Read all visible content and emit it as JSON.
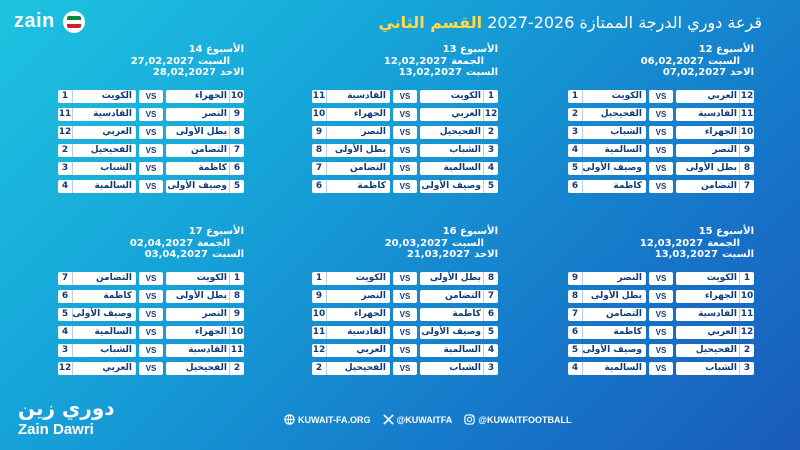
{
  "brand": {
    "top_logo": "zain",
    "bottom_ar": "دوري زين",
    "bottom_en": "Zain Dawri"
  },
  "header": {
    "accent": "القسم الثاني",
    "title": "قرعة دوري الدرجة الممتازة 2026-2027"
  },
  "colors": {
    "accent": "#ffd84d",
    "navy": "#0f3d7a",
    "card": "#ffffff"
  },
  "weeks": [
    {
      "title": "الأسبوع 12",
      "dates": [
        {
          "day": "السبت",
          "date": "06,02,2027"
        },
        {
          "day": "الاحد",
          "date": "07,02,2027"
        }
      ],
      "matches": [
        {
          "home_num": "12",
          "home": "العربي",
          "away_num": "1",
          "away": "الكويت"
        },
        {
          "home_num": "11",
          "home": "القادسية",
          "away_num": "2",
          "away": "الفحيحيل"
        },
        {
          "home_num": "10",
          "home": "الجهراء",
          "away_num": "3",
          "away": "الشباب"
        },
        {
          "home_num": "9",
          "home": "النصر",
          "away_num": "4",
          "away": "السالمية"
        },
        {
          "home_num": "8",
          "home": "بطل الأولى",
          "away_num": "5",
          "away": "وصيف الأولى"
        },
        {
          "home_num": "7",
          "home": "التضامن",
          "away_num": "6",
          "away": "كاظمة"
        }
      ]
    },
    {
      "title": "الأسبوع 13",
      "dates": [
        {
          "day": "الجمعة",
          "date": "12,02,2027"
        },
        {
          "day": "السبت",
          "date": "13,02,2027"
        }
      ],
      "matches": [
        {
          "home_num": "1",
          "home": "الكويت",
          "away_num": "11",
          "away": "القادسية"
        },
        {
          "home_num": "12",
          "home": "العربي",
          "away_num": "10",
          "away": "الجهراء"
        },
        {
          "home_num": "2",
          "home": "الفحيحيل",
          "away_num": "9",
          "away": "النصر"
        },
        {
          "home_num": "3",
          "home": "الشباب",
          "away_num": "8",
          "away": "بطل الأولى"
        },
        {
          "home_num": "4",
          "home": "السالمية",
          "away_num": "7",
          "away": "التضامن"
        },
        {
          "home_num": "5",
          "home": "وصيف الأولى",
          "away_num": "6",
          "away": "كاظمة"
        }
      ]
    },
    {
      "title": "الأسبوع 14",
      "dates": [
        {
          "day": "السبت",
          "date": "27,02,2027"
        },
        {
          "day": "الاحد",
          "date": "28,02,2027"
        }
      ],
      "matches": [
        {
          "home_num": "10",
          "home": "الجهراء",
          "away_num": "1",
          "away": "الكويت"
        },
        {
          "home_num": "9",
          "home": "النصر",
          "away_num": "11",
          "away": "القادسية"
        },
        {
          "home_num": "8",
          "home": "بطل الأولى",
          "away_num": "12",
          "away": "العربي"
        },
        {
          "home_num": "7",
          "home": "التضامن",
          "away_num": "2",
          "away": "الفحيحيل"
        },
        {
          "home_num": "6",
          "home": "كاظمة",
          "away_num": "3",
          "away": "الشباب"
        },
        {
          "home_num": "5",
          "home": "وصيف الأولى",
          "away_num": "4",
          "away": "السالمية"
        }
      ]
    },
    {
      "title": "الأسبوع 15",
      "dates": [
        {
          "day": "الجمعة",
          "date": "12,03,2027"
        },
        {
          "day": "السبت",
          "date": "13,03,2027"
        }
      ],
      "matches": [
        {
          "home_num": "1",
          "home": "الكويت",
          "away_num": "9",
          "away": "النصر"
        },
        {
          "home_num": "10",
          "home": "الجهراء",
          "away_num": "8",
          "away": "بطل الأولى"
        },
        {
          "home_num": "11",
          "home": "القادسية",
          "away_num": "7",
          "away": "التضامن"
        },
        {
          "home_num": "12",
          "home": "العربي",
          "away_num": "6",
          "away": "كاظمة"
        },
        {
          "home_num": "2",
          "home": "الفحيحيل",
          "away_num": "5",
          "away": "وصيف الأولى"
        },
        {
          "home_num": "3",
          "home": "الشباب",
          "away_num": "4",
          "away": "السالمية"
        }
      ]
    },
    {
      "title": "الأسبوع 16",
      "dates": [
        {
          "day": "السبت",
          "date": "20,03,2027"
        },
        {
          "day": "الاحد",
          "date": "21,03,2027"
        }
      ],
      "matches": [
        {
          "home_num": "8",
          "home": "بطل الأولى",
          "away_num": "1",
          "away": "الكويت"
        },
        {
          "home_num": "7",
          "home": "التضامن",
          "away_num": "9",
          "away": "النصر"
        },
        {
          "home_num": "6",
          "home": "كاظمة",
          "away_num": "10",
          "away": "الجهراء"
        },
        {
          "home_num": "5",
          "home": "وصيف الأولى",
          "away_num": "11",
          "away": "القادسية"
        },
        {
          "home_num": "4",
          "home": "السالمية",
          "away_num": "12",
          "away": "العربي"
        },
        {
          "home_num": "3",
          "home": "الشباب",
          "away_num": "2",
          "away": "الفحيحيل"
        }
      ]
    },
    {
      "title": "الأسبوع 17",
      "dates": [
        {
          "day": "الجمعة",
          "date": "02,04,2027"
        },
        {
          "day": "السبت",
          "date": "03,04,2027"
        }
      ],
      "matches": [
        {
          "home_num": "1",
          "home": "الكويت",
          "away_num": "7",
          "away": "التضامن"
        },
        {
          "home_num": "8",
          "home": "بطل الأولى",
          "away_num": "6",
          "away": "كاظمة"
        },
        {
          "home_num": "9",
          "home": "النصر",
          "away_num": "5",
          "away": "وصيف الأولى"
        },
        {
          "home_num": "10",
          "home": "الجهراء",
          "away_num": "4",
          "away": "السالمية"
        },
        {
          "home_num": "11",
          "home": "القادسية",
          "away_num": "3",
          "away": "الشباب"
        },
        {
          "home_num": "2",
          "home": "الفحيحيل",
          "away_num": "12",
          "away": "العربي"
        }
      ]
    }
  ],
  "vs_label": "VS",
  "footer": {
    "website": "KUWAIT-FA.ORG",
    "x_handle": "@KUWAITFA",
    "ig_handle": "@KUWAITFOOTBALL"
  }
}
